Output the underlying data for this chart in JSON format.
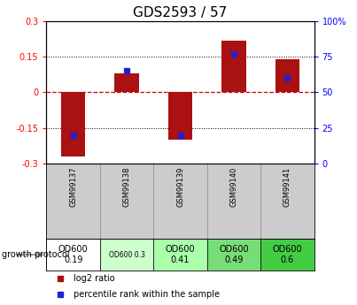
{
  "title": "GDS2593 / 57",
  "samples": [
    "GSM99137",
    "GSM99138",
    "GSM99139",
    "GSM99140",
    "GSM99141"
  ],
  "log2_ratios": [
    -0.27,
    0.08,
    -0.2,
    0.22,
    0.14
  ],
  "percentile_ranks": [
    20,
    65,
    20,
    77,
    60
  ],
  "ylim": [
    -0.3,
    0.3
  ],
  "yticks_left": [
    -0.3,
    -0.15,
    0,
    0.15,
    0.3
  ],
  "yticks_right": [
    0,
    25,
    50,
    75,
    100
  ],
  "bar_color": "#aa1111",
  "dot_color": "#2222cc",
  "zero_line_color": "#cc0000",
  "dotted_line_color": "#000000",
  "growth_labels": [
    "OD600\n0.19",
    "OD600 0.3",
    "OD600\n0.41",
    "OD600\n0.49",
    "OD600\n0.6"
  ],
  "growth_colors": [
    "#ffffff",
    "#ccffcc",
    "#aaffaa",
    "#77dd77",
    "#44cc44"
  ],
  "legend_bar": "log2 ratio",
  "legend_dot": "percentile rank within the sample",
  "title_fontsize": 11,
  "label_fontsize": 6.5
}
